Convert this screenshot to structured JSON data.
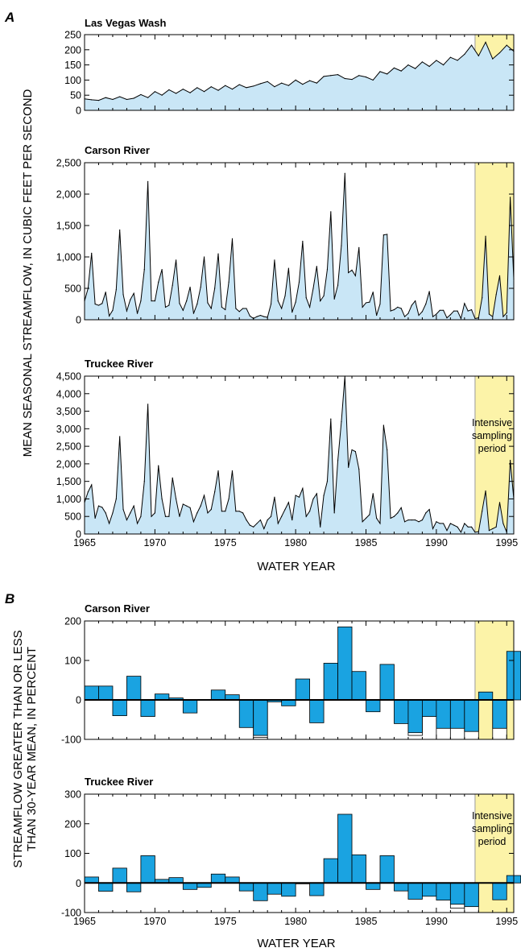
{
  "figure": {
    "part_a_letter": "A",
    "part_b_letter": "B",
    "part_a_ylabel": "MEAN SEASONAL STREAMFLOW, IN CUBIC FEET PER SECOND",
    "part_b_ylabel_line1": "STREAMFLOW GREATER THAN OR LESS",
    "part_b_ylabel_line2": "THAN 30-YEAR MEAN, IN PERCENT",
    "xlabel": "WATER YEAR",
    "annotation_line1": "Intensive",
    "annotation_line2": "sampling",
    "annotation_line3": "period"
  },
  "colors": {
    "area_fill": "#c9e6f6",
    "bar_fill": "#1aa3e1",
    "highlight": "#fcf3a8",
    "highlight_edge": "#999999"
  },
  "chart_data": [
    {
      "type": "area",
      "title": "Las Vegas Wash",
      "x_range": [
        1965,
        1995.5
      ],
      "ylim": [
        0,
        250
      ],
      "yticks": [
        0,
        50,
        100,
        150,
        200,
        250
      ],
      "ytick_labels": [
        "0",
        "50",
        "100",
        "150",
        "200",
        "250"
      ],
      "xticks": [
        1965,
        1970,
        1975,
        1980,
        1985,
        1990,
        1995
      ],
      "xtick_labels": [],
      "highlight": [
        1992.75,
        1995.5
      ],
      "x": [
        1965,
        1965.5,
        1966,
        1966.5,
        1967,
        1967.5,
        1968,
        1968.5,
        1969,
        1969.5,
        1970,
        1970.5,
        1971,
        1971.5,
        1972,
        1972.5,
        1973,
        1973.5,
        1974,
        1974.5,
        1975,
        1975.5,
        1976,
        1976.5,
        1977,
        1977.5,
        1978,
        1978.5,
        1979,
        1979.5,
        1980,
        1980.5,
        1981,
        1981.5,
        1982,
        1982.5,
        1983,
        1983.5,
        1984,
        1984.5,
        1985,
        1985.5,
        1986,
        1986.5,
        1987,
        1987.5,
        1988,
        1988.5,
        1989,
        1989.5,
        1990,
        1990.5,
        1991,
        1991.5,
        1992,
        1992.5,
        1993,
        1993.5,
        1994,
        1994.5,
        1995,
        1995.5
      ],
      "values": [
        38,
        35,
        33,
        42,
        36,
        45,
        36,
        40,
        52,
        42,
        62,
        50,
        68,
        56,
        70,
        58,
        75,
        62,
        78,
        66,
        82,
        70,
        85,
        75,
        80,
        88,
        95,
        78,
        90,
        82,
        100,
        86,
        98,
        90,
        112,
        115,
        118,
        105,
        102,
        115,
        110,
        100,
        128,
        120,
        140,
        130,
        150,
        138,
        160,
        145,
        165,
        150,
        175,
        165,
        185,
        215,
        180,
        225,
        170,
        190,
        215,
        195
      ]
    },
    {
      "type": "area",
      "title": "Carson River",
      "x_range": [
        1965,
        1995.5
      ],
      "ylim": [
        0,
        2500
      ],
      "yticks": [
        0,
        500,
        1000,
        1500,
        2000,
        2500
      ],
      "ytick_labels": [
        "0",
        "500",
        "1,000",
        "1,500",
        "2,000",
        "2,500"
      ],
      "xticks": [
        1965,
        1970,
        1975,
        1980,
        1985,
        1990,
        1995
      ],
      "xtick_labels": [],
      "highlight": [
        1992.75,
        1995.5
      ],
      "x": [
        1965,
        1965.25,
        1965.5,
        1965.75,
        1966,
        1966.25,
        1966.5,
        1966.75,
        1967,
        1967.25,
        1967.5,
        1967.75,
        1968,
        1968.25,
        1968.5,
        1968.75,
        1969,
        1969.25,
        1969.5,
        1969.75,
        1970,
        1970.25,
        1970.5,
        1970.75,
        1971,
        1971.25,
        1971.5,
        1971.75,
        1972,
        1972.25,
        1972.5,
        1972.75,
        1973,
        1973.25,
        1973.5,
        1973.75,
        1974,
        1974.25,
        1974.5,
        1974.75,
        1975,
        1975.25,
        1975.5,
        1975.75,
        1976,
        1976.25,
        1976.5,
        1976.75,
        1977,
        1977.25,
        1977.5,
        1977.75,
        1978,
        1978.25,
        1978.5,
        1978.75,
        1979,
        1979.25,
        1979.5,
        1979.75,
        1980,
        1980.25,
        1980.5,
        1980.75,
        1981,
        1981.25,
        1981.5,
        1981.75,
        1982,
        1982.25,
        1982.5,
        1982.75,
        1983,
        1983.25,
        1983.5,
        1983.75,
        1984,
        1984.25,
        1984.5,
        1984.75,
        1985,
        1985.25,
        1985.5,
        1985.75,
        1986,
        1986.25,
        1986.5,
        1986.75,
        1987,
        1987.25,
        1987.5,
        1987.75,
        1988,
        1988.25,
        1988.5,
        1988.75,
        1989,
        1989.25,
        1989.5,
        1989.75,
        1990,
        1990.25,
        1990.5,
        1990.75,
        1991,
        1991.25,
        1991.5,
        1991.75,
        1992,
        1992.25,
        1992.5,
        1992.75,
        1993,
        1993.25,
        1993.5,
        1993.75,
        1994,
        1994.25,
        1994.5,
        1994.75,
        1995,
        1995.25,
        1995.5
      ],
      "values": [
        300,
        500,
        1060,
        250,
        230,
        260,
        440,
        60,
        150,
        480,
        1430,
        400,
        140,
        320,
        420,
        100,
        300,
        800,
        2200,
        300,
        300,
        600,
        800,
        200,
        230,
        550,
        950,
        260,
        150,
        300,
        520,
        100,
        250,
        520,
        1000,
        270,
        180,
        500,
        1050,
        200,
        160,
        600,
        1290,
        180,
        130,
        180,
        180,
        60,
        20,
        50,
        70,
        50,
        40,
        250,
        950,
        300,
        180,
        380,
        820,
        120,
        280,
        600,
        1250,
        350,
        200,
        500,
        850,
        300,
        380,
        800,
        1720,
        330,
        550,
        1180,
        2330,
        750,
        790,
        700,
        1150,
        200,
        270,
        280,
        440,
        70,
        250,
        1350,
        1360,
        140,
        160,
        200,
        180,
        50,
        100,
        230,
        300,
        70,
        130,
        250,
        450,
        50,
        90,
        150,
        150,
        30,
        80,
        140,
        140,
        20,
        260,
        140,
        160,
        20,
        30,
        350,
        1330,
        90,
        50,
        400,
        700,
        50,
        110,
        1950,
        650
      ]
    },
    {
      "type": "area",
      "title": "Truckee River",
      "x_range": [
        1965,
        1995.5
      ],
      "ylim": [
        0,
        4500
      ],
      "yticks": [
        0,
        500,
        1000,
        1500,
        2000,
        2500,
        3000,
        3500,
        4000,
        4500
      ],
      "ytick_labels": [
        "0",
        "500",
        "1,000",
        "1,500",
        "2,000",
        "2,500",
        "3,000",
        "3,500",
        "4,000",
        "4,500"
      ],
      "xticks": [
        1965,
        1970,
        1975,
        1980,
        1985,
        1990,
        1995
      ],
      "xtick_labels": [
        "1965",
        "1970",
        "1975",
        "1980",
        "1985",
        "1990",
        "1995"
      ],
      "highlight": [
        1992.75,
        1995.5
      ],
      "x": [
        1965,
        1965.25,
        1965.5,
        1965.75,
        1966,
        1966.25,
        1966.5,
        1966.75,
        1967,
        1967.25,
        1967.5,
        1967.75,
        1968,
        1968.25,
        1968.5,
        1968.75,
        1969,
        1969.25,
        1969.5,
        1969.75,
        1970,
        1970.25,
        1970.5,
        1970.75,
        1971,
        1971.25,
        1971.5,
        1971.75,
        1972,
        1972.25,
        1972.5,
        1972.75,
        1973,
        1973.25,
        1973.5,
        1973.75,
        1974,
        1974.25,
        1974.5,
        1974.75,
        1975,
        1975.25,
        1975.5,
        1975.75,
        1976,
        1976.25,
        1976.5,
        1976.75,
        1977,
        1977.25,
        1977.5,
        1977.75,
        1978,
        1978.25,
        1978.5,
        1978.75,
        1979,
        1979.25,
        1979.5,
        1979.75,
        1980,
        1980.25,
        1980.5,
        1980.75,
        1981,
        1981.25,
        1981.5,
        1981.75,
        1982,
        1982.25,
        1982.5,
        1982.75,
        1983,
        1983.25,
        1983.5,
        1983.75,
        1984,
        1984.25,
        1984.5,
        1984.75,
        1985,
        1985.25,
        1985.5,
        1985.75,
        1986,
        1986.25,
        1986.5,
        1986.75,
        1987,
        1987.25,
        1987.5,
        1987.75,
        1988,
        1988.25,
        1988.5,
        1988.75,
        1989,
        1989.25,
        1989.5,
        1989.75,
        1990,
        1990.25,
        1990.5,
        1990.75,
        1991,
        1991.25,
        1991.5,
        1991.75,
        1992,
        1992.25,
        1992.5,
        1992.75,
        1993,
        1993.25,
        1993.5,
        1993.75,
        1994,
        1994.25,
        1994.5,
        1994.75,
        1995,
        1995.25,
        1995.5
      ],
      "values": [
        900,
        1200,
        1400,
        450,
        800,
        760,
        600,
        300,
        600,
        1000,
        2780,
        700,
        400,
        600,
        800,
        300,
        500,
        1500,
        3700,
        500,
        600,
        1950,
        1000,
        500,
        500,
        1600,
        1000,
        500,
        850,
        800,
        750,
        350,
        600,
        800,
        1100,
        600,
        700,
        1200,
        1800,
        650,
        650,
        1000,
        1800,
        650,
        650,
        600,
        400,
        250,
        200,
        300,
        400,
        150,
        400,
        500,
        1050,
        300,
        500,
        700,
        900,
        400,
        1100,
        1050,
        1300,
        500,
        650,
        1000,
        1150,
        200,
        1100,
        1500,
        3280,
        600,
        2100,
        3200,
        4500,
        1900,
        2400,
        2350,
        1850,
        350,
        450,
        550,
        1150,
        450,
        300,
        3100,
        2400,
        450,
        500,
        600,
        750,
        350,
        400,
        400,
        400,
        350,
        400,
        600,
        700,
        150,
        350,
        300,
        300,
        100,
        300,
        250,
        200,
        50,
        300,
        200,
        200,
        50,
        70,
        650,
        1230,
        100,
        150,
        200,
        900,
        300,
        50,
        2100,
        1000
      ]
    },
    {
      "type": "bar",
      "title": "Carson River",
      "x_range": [
        1965,
        1995.5
      ],
      "ylim": [
        -100,
        200
      ],
      "yticks": [
        -100,
        0,
        100,
        200
      ],
      "ytick_labels": [
        "-100",
        "0",
        "100",
        "200"
      ],
      "xticks": [
        1965,
        1970,
        1975,
        1980,
        1985,
        1990,
        1995
      ],
      "xtick_labels": [],
      "highlight": [
        1992.75,
        1995.5
      ],
      "categories": [
        1965,
        1966,
        1967,
        1968,
        1969,
        1970,
        1971,
        1972,
        1973,
        1974,
        1975,
        1976,
        1977,
        1978,
        1979,
        1980,
        1981,
        1982,
        1983,
        1984,
        1985,
        1986,
        1987,
        1988,
        1989,
        1990,
        1991,
        1992,
        1993,
        1994,
        1995
      ],
      "values": [
        35,
        35,
        -40,
        60,
        -42,
        15,
        5,
        -33,
        0,
        25,
        13,
        -70,
        -90,
        -5,
        -15,
        53,
        -58,
        93,
        185,
        72,
        -30,
        90,
        -60,
        -83,
        -42,
        -72,
        -72,
        -80,
        20,
        -72,
        123
      ],
      "lows": [
        null,
        null,
        null,
        null,
        null,
        null,
        null,
        null,
        null,
        null,
        null,
        null,
        -95,
        null,
        null,
        null,
        null,
        null,
        null,
        null,
        null,
        null,
        null,
        -90,
        null,
        -100,
        -100,
        -100,
        null,
        -100,
        null
      ]
    },
    {
      "type": "bar",
      "title": "Truckee River",
      "x_range": [
        1965,
        1995.5
      ],
      "ylim": [
        -100,
        300
      ],
      "yticks": [
        -100,
        0,
        100,
        200,
        300
      ],
      "ytick_labels": [
        "-100",
        "0",
        "100",
        "200",
        "300"
      ],
      "xticks": [
        1965,
        1970,
        1975,
        1980,
        1985,
        1990,
        1995
      ],
      "xtick_labels": [
        "1965",
        "1970",
        "1975",
        "1980",
        "1985",
        "1990",
        "1995"
      ],
      "highlight": [
        1992.75,
        1995.5
      ],
      "categories": [
        1965,
        1966,
        1967,
        1968,
        1969,
        1970,
        1971,
        1972,
        1973,
        1974,
        1975,
        1976,
        1977,
        1978,
        1979,
        1980,
        1981,
        1982,
        1983,
        1984,
        1985,
        1986,
        1987,
        1988,
        1989,
        1990,
        1991,
        1992,
        1993,
        1994,
        1995
      ],
      "values": [
        20,
        -28,
        50,
        -30,
        92,
        12,
        18,
        -22,
        -15,
        30,
        20,
        -27,
        -60,
        -38,
        -45,
        -3,
        -43,
        82,
        232,
        95,
        -22,
        92,
        -27,
        -55,
        -45,
        -58,
        -72,
        -80,
        0,
        -57,
        25
      ],
      "lows": [
        null,
        null,
        null,
        null,
        null,
        null,
        null,
        null,
        null,
        null,
        null,
        null,
        null,
        null,
        null,
        null,
        null,
        null,
        null,
        null,
        null,
        null,
        null,
        null,
        null,
        null,
        -85,
        -100,
        null,
        null,
        null
      ]
    }
  ]
}
